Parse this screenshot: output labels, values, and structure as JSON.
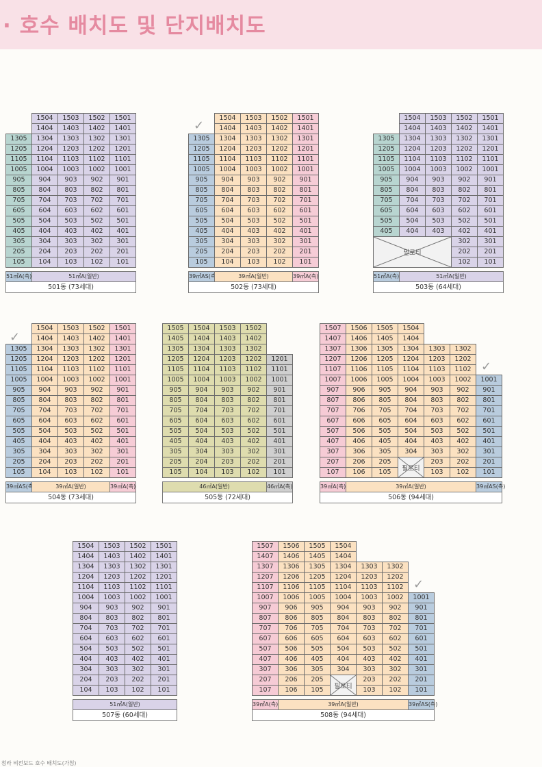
{
  "title": "· 호수 배치도 및 단지배치도",
  "footer_text": "청라 비전보드 호수 배치도(가칭)",
  "colors": {
    "side": "#b8d5d0",
    "blue": "#b9ccde",
    "lav": "#d9d3e8",
    "pink": "#f6ccd6",
    "peach": "#fbe1c1",
    "olive": "#dedcae",
    "grey": "#cfcfcf"
  },
  "buildings": [
    {
      "id": "501",
      "caption": "501동 (73세대)",
      "checked": false,
      "legend": [
        {
          "label": "51㎡A(측)",
          "color": "blue"
        },
        {
          "label": "51㎡A(일반)",
          "color": "lav"
        }
      ],
      "rows": [
        [
          "",
          "1504",
          "1503",
          "1502",
          "1501"
        ],
        [
          "",
          "1404",
          "1403",
          "1402",
          "1401"
        ],
        [
          "1305",
          "1304",
          "1303",
          "1302",
          "1301"
        ],
        [
          "1205",
          "1204",
          "1203",
          "1202",
          "1201"
        ],
        [
          "1105",
          "1104",
          "1103",
          "1102",
          "1101"
        ],
        [
          "1005",
          "1004",
          "1003",
          "1002",
          "1001"
        ],
        [
          "905",
          "904",
          "903",
          "902",
          "901"
        ],
        [
          "805",
          "804",
          "803",
          "802",
          "801"
        ],
        [
          "705",
          "704",
          "703",
          "702",
          "701"
        ],
        [
          "605",
          "604",
          "603",
          "602",
          "601"
        ],
        [
          "505",
          "504",
          "503",
          "502",
          "501"
        ],
        [
          "405",
          "404",
          "403",
          "402",
          "401"
        ],
        [
          "305",
          "304",
          "303",
          "302",
          "301"
        ],
        [
          "205",
          "204",
          "203",
          "202",
          "201"
        ],
        [
          "105",
          "104",
          "103",
          "102",
          "101"
        ]
      ]
    },
    {
      "id": "502",
      "caption": "502동 (73세대)",
      "checked": true,
      "legend": [
        {
          "label": "39㎡AS(측)",
          "color": "blue"
        },
        {
          "label": "39㎡A(일반)",
          "color": "peach"
        },
        {
          "label": "39㎡A(측)",
          "color": "pink"
        }
      ],
      "rows": [
        [
          "",
          "1504",
          "1503",
          "1502",
          "1501"
        ],
        [
          "",
          "1404",
          "1403",
          "1402",
          "1401"
        ],
        [
          "1305",
          "1304",
          "1303",
          "1302",
          "1301"
        ],
        [
          "1205",
          "1204",
          "1203",
          "1202",
          "1201"
        ],
        [
          "1105",
          "1104",
          "1103",
          "1102",
          "1101"
        ],
        [
          "1005",
          "1004",
          "1003",
          "1002",
          "1001"
        ],
        [
          "905",
          "904",
          "903",
          "902",
          "901"
        ],
        [
          "805",
          "804",
          "803",
          "802",
          "801"
        ],
        [
          "705",
          "704",
          "703",
          "702",
          "701"
        ],
        [
          "605",
          "604",
          "603",
          "602",
          "601"
        ],
        [
          "505",
          "504",
          "503",
          "502",
          "501"
        ],
        [
          "405",
          "404",
          "403",
          "402",
          "401"
        ],
        [
          "305",
          "304",
          "303",
          "302",
          "301"
        ],
        [
          "205",
          "204",
          "203",
          "202",
          "201"
        ],
        [
          "105",
          "104",
          "103",
          "102",
          "101"
        ]
      ]
    },
    {
      "id": "503",
      "caption": "503동 (64세대)",
      "checked": false,
      "pilotis": "필로티",
      "legend": [
        {
          "label": "51㎡A(측)",
          "color": "blue"
        },
        {
          "label": "51㎡A(일반)",
          "color": "lav"
        }
      ],
      "rows": [
        [
          "",
          "1504",
          "1503",
          "1502",
          "1501"
        ],
        [
          "",
          "1404",
          "1403",
          "1402",
          "1401"
        ],
        [
          "1305",
          "1304",
          "1303",
          "1302",
          "1301"
        ],
        [
          "1205",
          "1204",
          "1203",
          "1202",
          "1201"
        ],
        [
          "1105",
          "1104",
          "1103",
          "1102",
          "1101"
        ],
        [
          "1005",
          "1004",
          "1003",
          "1002",
          "1001"
        ],
        [
          "905",
          "904",
          "903",
          "902",
          "901"
        ],
        [
          "805",
          "804",
          "803",
          "802",
          "801"
        ],
        [
          "705",
          "704",
          "703",
          "702",
          "701"
        ],
        [
          "605",
          "604",
          "603",
          "602",
          "601"
        ],
        [
          "505",
          "504",
          "503",
          "502",
          "501"
        ],
        [
          "405",
          "404",
          "403",
          "402",
          "401"
        ],
        [
          "",
          "",
          "",
          "302",
          "301"
        ],
        [
          "",
          "",
          "",
          "202",
          "201"
        ],
        [
          "",
          "",
          "",
          "102",
          "101"
        ]
      ]
    },
    {
      "id": "504",
      "caption": "504동 (73세대)",
      "checked": true,
      "legend": [
        {
          "label": "39㎡AS(측)",
          "color": "blue"
        },
        {
          "label": "39㎡A(일반)",
          "color": "peach"
        },
        {
          "label": "39㎡A(측)",
          "color": "pink"
        }
      ],
      "rows": [
        [
          "",
          "1504",
          "1503",
          "1502",
          "1501"
        ],
        [
          "",
          "1404",
          "1403",
          "1402",
          "1401"
        ],
        [
          "1305",
          "1304",
          "1303",
          "1302",
          "1301"
        ],
        [
          "1205",
          "1204",
          "1203",
          "1202",
          "1201"
        ],
        [
          "1105",
          "1104",
          "1103",
          "1102",
          "1101"
        ],
        [
          "1005",
          "1004",
          "1003",
          "1002",
          "1001"
        ],
        [
          "905",
          "904",
          "903",
          "902",
          "901"
        ],
        [
          "805",
          "804",
          "803",
          "802",
          "801"
        ],
        [
          "705",
          "704",
          "703",
          "702",
          "701"
        ],
        [
          "605",
          "604",
          "603",
          "602",
          "601"
        ],
        [
          "505",
          "504",
          "503",
          "502",
          "501"
        ],
        [
          "405",
          "404",
          "403",
          "402",
          "401"
        ],
        [
          "305",
          "304",
          "303",
          "302",
          "301"
        ],
        [
          "205",
          "204",
          "203",
          "202",
          "201"
        ],
        [
          "105",
          "104",
          "103",
          "102",
          "101"
        ]
      ]
    },
    {
      "id": "505",
      "caption": "505동 (72세대)",
      "checked": false,
      "legend": [
        {
          "label": "46㎡A(일반)",
          "color": "olive"
        },
        {
          "label": "46㎡A(측)",
          "color": "grey"
        }
      ],
      "rows": [
        [
          "1505",
          "1504",
          "1503",
          "1502",
          ""
        ],
        [
          "1405",
          "1404",
          "1403",
          "1402",
          ""
        ],
        [
          "1305",
          "1304",
          "1303",
          "1302",
          ""
        ],
        [
          "1205",
          "1204",
          "1203",
          "1202",
          "1201"
        ],
        [
          "1105",
          "1104",
          "1103",
          "1102",
          "1101"
        ],
        [
          "1005",
          "1004",
          "1003",
          "1002",
          "1001"
        ],
        [
          "905",
          "904",
          "903",
          "902",
          "901"
        ],
        [
          "805",
          "804",
          "803",
          "802",
          "801"
        ],
        [
          "705",
          "704",
          "703",
          "702",
          "701"
        ],
        [
          "605",
          "604",
          "603",
          "602",
          "601"
        ],
        [
          "505",
          "504",
          "503",
          "502",
          "501"
        ],
        [
          "405",
          "404",
          "403",
          "402",
          "401"
        ],
        [
          "305",
          "304",
          "303",
          "302",
          "301"
        ],
        [
          "205",
          "204",
          "203",
          "202",
          "201"
        ],
        [
          "105",
          "104",
          "103",
          "102",
          "101"
        ]
      ]
    },
    {
      "id": "506",
      "caption": "506동 (94세대)",
      "checked": true,
      "pilotis": "필로티",
      "legend": [
        {
          "label": "39㎡A(측)",
          "color": "pink"
        },
        {
          "label": "39㎡A(일반)",
          "color": "peach"
        },
        {
          "label": "39㎡AS(측)",
          "color": "blue"
        }
      ],
      "rows": [
        [
          "1507",
          "1506",
          "1505",
          "1504",
          "",
          "",
          ""
        ],
        [
          "1407",
          "1406",
          "1405",
          "1404",
          "",
          "",
          ""
        ],
        [
          "1307",
          "1306",
          "1305",
          "1304",
          "1303",
          "1302",
          ""
        ],
        [
          "1207",
          "1206",
          "1205",
          "1204",
          "1203",
          "1202",
          ""
        ],
        [
          "1107",
          "1106",
          "1105",
          "1104",
          "1103",
          "1102",
          ""
        ],
        [
          "1007",
          "1006",
          "1005",
          "1004",
          "1003",
          "1002",
          "1001"
        ],
        [
          "907",
          "906",
          "905",
          "904",
          "903",
          "902",
          "901"
        ],
        [
          "807",
          "806",
          "805",
          "804",
          "803",
          "802",
          "801"
        ],
        [
          "707",
          "706",
          "705",
          "704",
          "703",
          "702",
          "701"
        ],
        [
          "607",
          "606",
          "605",
          "604",
          "603",
          "602",
          "601"
        ],
        [
          "507",
          "506",
          "505",
          "504",
          "503",
          "502",
          "501"
        ],
        [
          "407",
          "406",
          "405",
          "404",
          "403",
          "402",
          "401"
        ],
        [
          "307",
          "306",
          "305",
          "304",
          "303",
          "302",
          "301"
        ],
        [
          "207",
          "206",
          "205",
          "",
          "203",
          "202",
          "201"
        ],
        [
          "107",
          "106",
          "105",
          "",
          "103",
          "102",
          "101"
        ]
      ]
    },
    {
      "id": "507",
      "caption": "507동 (60세대)",
      "checked": false,
      "legend": [
        {
          "label": "51㎡A(일반)",
          "color": "lav"
        }
      ],
      "rows": [
        [
          "1504",
          "1503",
          "1502",
          "1501"
        ],
        [
          "1404",
          "1403",
          "1402",
          "1401"
        ],
        [
          "1304",
          "1303",
          "1302",
          "1301"
        ],
        [
          "1204",
          "1203",
          "1202",
          "1201"
        ],
        [
          "1104",
          "1103",
          "1102",
          "1101"
        ],
        [
          "1004",
          "1003",
          "1002",
          "1001"
        ],
        [
          "904",
          "903",
          "902",
          "901"
        ],
        [
          "804",
          "803",
          "802",
          "801"
        ],
        [
          "704",
          "703",
          "702",
          "701"
        ],
        [
          "604",
          "603",
          "602",
          "601"
        ],
        [
          "504",
          "503",
          "502",
          "501"
        ],
        [
          "404",
          "403",
          "402",
          "401"
        ],
        [
          "304",
          "303",
          "302",
          "301"
        ],
        [
          "204",
          "203",
          "202",
          "201"
        ],
        [
          "104",
          "103",
          "102",
          "101"
        ]
      ]
    },
    {
      "id": "508",
      "caption": "508동 (94세대)",
      "checked": true,
      "pilotis": "필로티",
      "legend": [
        {
          "label": "39㎡A(측)",
          "color": "pink"
        },
        {
          "label": "39㎡A(일반)",
          "color": "peach"
        },
        {
          "label": "39㎡AS(측)",
          "color": "blue"
        }
      ],
      "rows": [
        [
          "1507",
          "1506",
          "1505",
          "1504",
          "",
          "",
          ""
        ],
        [
          "1407",
          "1406",
          "1405",
          "1404",
          "",
          "",
          ""
        ],
        [
          "1307",
          "1306",
          "1305",
          "1304",
          "1303",
          "1302",
          ""
        ],
        [
          "1207",
          "1206",
          "1205",
          "1204",
          "1203",
          "1202",
          ""
        ],
        [
          "1107",
          "1106",
          "1105",
          "1104",
          "1103",
          "1102",
          ""
        ],
        [
          "1007",
          "1006",
          "1005",
          "1004",
          "1003",
          "1002",
          "1001"
        ],
        [
          "907",
          "906",
          "905",
          "904",
          "903",
          "902",
          "901"
        ],
        [
          "807",
          "806",
          "805",
          "804",
          "803",
          "802",
          "801"
        ],
        [
          "707",
          "706",
          "705",
          "704",
          "703",
          "702",
          "701"
        ],
        [
          "607",
          "606",
          "605",
          "604",
          "603",
          "602",
          "601"
        ],
        [
          "507",
          "506",
          "505",
          "504",
          "503",
          "502",
          "501"
        ],
        [
          "407",
          "406",
          "405",
          "404",
          "403",
          "402",
          "401"
        ],
        [
          "307",
          "306",
          "305",
          "304",
          "303",
          "302",
          "301"
        ],
        [
          "207",
          "206",
          "205",
          "",
          "203",
          "202",
          "201"
        ],
        [
          "107",
          "106",
          "105",
          "",
          "103",
          "102",
          "101"
        ]
      ]
    }
  ]
}
